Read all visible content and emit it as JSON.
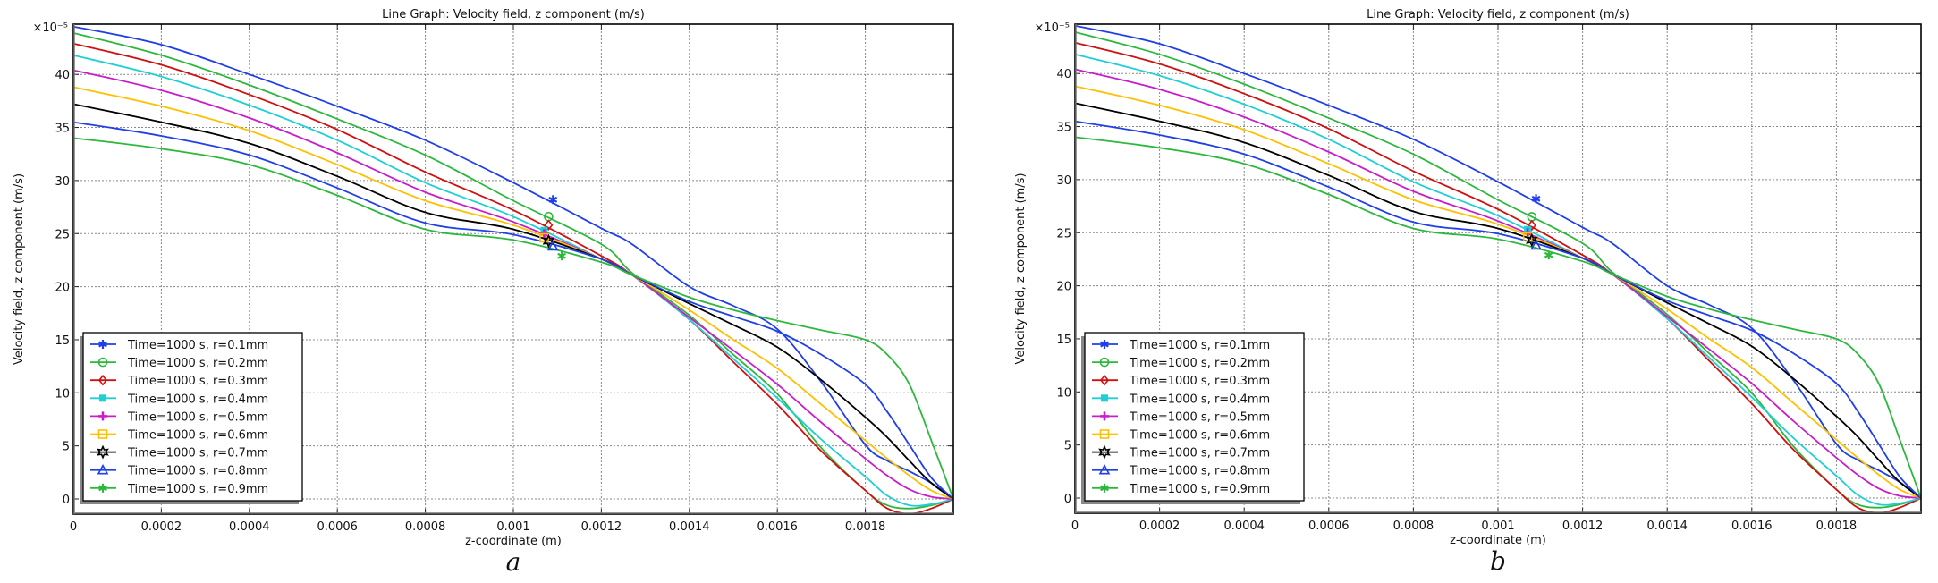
{
  "chart_data": [
    {
      "panel_label": "a",
      "type": "line",
      "title": "Line Graph: Velocity field, z component (m/s)",
      "xlabel": "z-coordinate (m)",
      "ylabel": "Velocity field, z component (m/s)",
      "y_multiplier": "×10⁻⁵",
      "xlim": [
        0,
        0.002
      ],
      "ylim": [
        -1.5,
        46
      ],
      "x_ticks": [
        0,
        0.0002,
        0.0004,
        0.0006,
        0.0008,
        0.001,
        0.0012,
        0.0014,
        0.0016,
        0.0018
      ],
      "x_tick_labels": [
        "0",
        "0.0002",
        "0.0004",
        "0.0006",
        "0.0008",
        "0.001",
        "0.0012",
        "0.0014",
        "0.0016",
        "0.0018"
      ],
      "y_ticks": [
        0,
        5,
        10,
        15,
        20,
        25,
        30,
        35,
        40
      ],
      "y_tick_labels": [
        "0",
        "5",
        "10",
        "15",
        "20",
        "25",
        "30",
        "35",
        "40"
      ],
      "grid": true,
      "legend_position": "bottom-left",
      "x": [
        0,
        0.0002,
        0.0004,
        0.0006,
        0.0008,
        0.001,
        0.0012,
        0.00127,
        0.0014,
        0.0015,
        0.0016,
        0.0017,
        0.0018,
        0.00185,
        0.0019,
        0.00195,
        0.002
      ],
      "series": [
        {
          "name": "Time=1000 s, r=0.1mm",
          "color": "#1f3fe8",
          "marker": "asterisk",
          "marker_at": [
            0.00109,
            28.2
          ],
          "values": [
            44.5,
            42.8,
            40.0,
            37.0,
            33.8,
            29.8,
            25.5,
            24.0,
            20.0,
            18.2,
            16.0,
            11.0,
            5.1,
            3.6,
            2.6,
            1.5,
            0
          ]
        },
        {
          "name": "Time=1000 s, r=0.2mm",
          "color": "#2db83d",
          "marker": "circle",
          "marker_at": [
            0.00108,
            26.6
          ],
          "values": [
            43.9,
            41.8,
            39.0,
            35.8,
            32.4,
            28.1,
            24.0,
            21.3,
            17.3,
            13.6,
            9.9,
            4.8,
            0.8,
            -0.6,
            -0.9,
            -0.6,
            0
          ]
        },
        {
          "name": "Time=1000 s, r=0.3mm",
          "color": "#d01010",
          "marker": "diamond",
          "marker_at": [
            0.00108,
            25.8
          ],
          "values": [
            42.9,
            40.9,
            38.1,
            34.8,
            30.8,
            27.2,
            22.9,
            21.1,
            16.9,
            12.9,
            8.9,
            4.5,
            0.8,
            -0.9,
            -1.4,
            -0.9,
            0
          ]
        },
        {
          "name": "Time=1000 s, r=0.4mm",
          "color": "#1ecfd6",
          "marker": "square-filled",
          "marker_at": [
            0.00107,
            25.3
          ],
          "values": [
            41.8,
            39.8,
            37.1,
            33.8,
            29.8,
            26.6,
            22.6,
            21.1,
            16.9,
            13.2,
            9.5,
            5.6,
            2.1,
            0.3,
            -0.6,
            -0.5,
            0
          ]
        },
        {
          "name": "Time=1000 s, r=0.5mm",
          "color": "#c81ec8",
          "marker": "plus",
          "marker_at": [
            0.00107,
            25.0
          ],
          "values": [
            40.4,
            38.5,
            35.9,
            32.6,
            28.9,
            26.1,
            22.6,
            21.1,
            17.1,
            14.0,
            10.8,
            7.2,
            3.8,
            2.2,
            0.9,
            0.2,
            0
          ]
        },
        {
          "name": "Time=1000 s, r=0.6mm",
          "color": "#ffc000",
          "marker": "square",
          "marker_at": [
            0.00107,
            24.6
          ],
          "values": [
            38.8,
            37.0,
            34.7,
            31.5,
            28.1,
            25.8,
            22.6,
            21.1,
            17.8,
            15.0,
            12.3,
            8.9,
            5.5,
            3.8,
            2.2,
            0.8,
            0
          ]
        },
        {
          "name": "Time=1000 s, r=0.7mm",
          "color": "#000000",
          "marker": "star",
          "marker_at": [
            0.00108,
            24.3
          ],
          "values": [
            37.2,
            35.5,
            33.5,
            30.4,
            27.0,
            25.4,
            22.6,
            21.1,
            18.4,
            16.4,
            14.3,
            11.2,
            7.7,
            5.8,
            3.6,
            1.5,
            0
          ]
        },
        {
          "name": "Time=1000 s, r=0.8mm",
          "color": "#1f3fe8",
          "marker": "triangle",
          "marker_at": [
            0.00109,
            23.8
          ],
          "values": [
            35.5,
            34.2,
            32.4,
            29.3,
            26.0,
            24.9,
            22.6,
            21.1,
            18.6,
            17.2,
            15.8,
            13.6,
            10.8,
            8.2,
            5.1,
            2.0,
            0
          ]
        },
        {
          "name": "Time=1000 s, r=0.9mm",
          "color": "#2db83d",
          "marker": "asterisk",
          "marker_at": [
            0.00111,
            22.9
          ],
          "values": [
            34.0,
            33.0,
            31.5,
            28.6,
            25.4,
            24.4,
            22.3,
            21.1,
            19.0,
            17.8,
            16.8,
            15.9,
            15.0,
            13.6,
            10.8,
            5.5,
            0
          ]
        }
      ]
    },
    {
      "panel_label": "b",
      "type": "line",
      "title": "Line Graph: Velocity field, z component (m/s)",
      "xlabel": "z-coordinate (m)",
      "ylabel": "Velocity field, z component (m/s)",
      "y_multiplier": "×10⁻⁵",
      "xlim": [
        0,
        0.002
      ],
      "ylim": [
        -1.5,
        46
      ],
      "x_ticks": [
        0,
        0.0002,
        0.0004,
        0.0006,
        0.0008,
        0.001,
        0.0012,
        0.0014,
        0.0016,
        0.0018
      ],
      "x_tick_labels": [
        "0",
        "0.0002",
        "0.0004",
        "0.0006",
        "0.0008",
        "0.001",
        "0.0012",
        "0.0014",
        "0.0016",
        "0.0018"
      ],
      "y_ticks": [
        0,
        5,
        10,
        15,
        20,
        25,
        30,
        35,
        40
      ],
      "y_tick_labels": [
        "0",
        "5",
        "10",
        "15",
        "20",
        "25",
        "30",
        "35",
        "40"
      ],
      "grid": true,
      "legend_position": "bottom-left",
      "x": [
        0,
        0.0002,
        0.0004,
        0.0006,
        0.0008,
        0.001,
        0.0012,
        0.00127,
        0.0014,
        0.0015,
        0.0016,
        0.0017,
        0.0018,
        0.00185,
        0.0019,
        0.00195,
        0.002
      ],
      "series": [
        {
          "name": "Time=1000 s, r=0.1mm",
          "color": "#1f3fe8",
          "marker": "asterisk",
          "marker_at": [
            0.00109,
            28.2
          ],
          "values": [
            44.5,
            42.8,
            40.0,
            37.0,
            33.8,
            29.8,
            25.5,
            24.0,
            20.0,
            18.2,
            16.0,
            11.0,
            5.1,
            3.6,
            2.6,
            1.5,
            0
          ]
        },
        {
          "name": "Time=1000 s, r=0.2mm",
          "color": "#2db83d",
          "marker": "circle",
          "marker_at": [
            0.00108,
            26.5
          ],
          "values": [
            43.9,
            41.8,
            39.0,
            35.8,
            32.4,
            28.1,
            24.0,
            21.3,
            17.3,
            13.6,
            9.9,
            4.8,
            0.8,
            -0.6,
            -0.9,
            -0.6,
            0
          ]
        },
        {
          "name": "Time=1000 s, r=0.3mm",
          "color": "#d01010",
          "marker": "diamond",
          "marker_at": [
            0.00108,
            25.7
          ],
          "values": [
            42.9,
            40.9,
            38.1,
            34.8,
            30.8,
            27.2,
            22.9,
            21.1,
            16.9,
            12.9,
            8.9,
            4.5,
            0.8,
            -0.9,
            -1.4,
            -0.9,
            0
          ]
        },
        {
          "name": "Time=1000 s, r=0.4mm",
          "color": "#1ecfd6",
          "marker": "square-filled",
          "marker_at": [
            0.00107,
            25.3
          ],
          "values": [
            41.8,
            39.8,
            37.1,
            33.8,
            29.8,
            26.6,
            22.6,
            21.1,
            16.9,
            13.2,
            9.5,
            5.6,
            2.1,
            0.3,
            -0.6,
            -0.5,
            0
          ]
        },
        {
          "name": "Time=1000 s, r=0.5mm",
          "color": "#c81ec8",
          "marker": "plus",
          "marker_at": [
            0.00107,
            25.0
          ],
          "values": [
            40.4,
            38.5,
            35.9,
            32.6,
            28.9,
            26.1,
            22.6,
            21.1,
            17.1,
            14.0,
            10.8,
            7.2,
            3.8,
            2.2,
            0.9,
            0.2,
            0
          ]
        },
        {
          "name": "Time=1000 s, r=0.6mm",
          "color": "#ffc000",
          "marker": "square",
          "marker_at": [
            0.00107,
            24.6
          ],
          "values": [
            38.8,
            37.0,
            34.7,
            31.5,
            28.1,
            25.8,
            22.6,
            21.1,
            17.8,
            15.0,
            12.3,
            8.9,
            5.5,
            3.8,
            2.2,
            0.8,
            0
          ]
        },
        {
          "name": "Time=1000 s, r=0.7mm",
          "color": "#000000",
          "marker": "star",
          "marker_at": [
            0.00108,
            24.3
          ],
          "values": [
            37.2,
            35.5,
            33.5,
            30.4,
            27.0,
            25.4,
            22.6,
            21.1,
            18.4,
            16.4,
            14.3,
            11.2,
            7.7,
            5.8,
            3.6,
            1.5,
            0
          ]
        },
        {
          "name": "Time=1000 s, r=0.8mm",
          "color": "#1f3fe8",
          "marker": "triangle",
          "marker_at": [
            0.00109,
            23.8
          ],
          "values": [
            35.5,
            34.2,
            32.4,
            29.3,
            26.0,
            24.9,
            22.6,
            21.1,
            18.6,
            17.2,
            15.8,
            13.6,
            10.8,
            8.2,
            5.1,
            2.0,
            0
          ]
        },
        {
          "name": "Time=1000 s, r=0.9mm",
          "color": "#2db83d",
          "marker": "asterisk",
          "marker_at": [
            0.00112,
            22.9
          ],
          "values": [
            34.0,
            33.0,
            31.5,
            28.6,
            25.4,
            24.4,
            22.3,
            21.1,
            19.0,
            17.8,
            16.8,
            15.9,
            15.0,
            13.6,
            10.8,
            5.5,
            0
          ]
        }
      ]
    }
  ]
}
